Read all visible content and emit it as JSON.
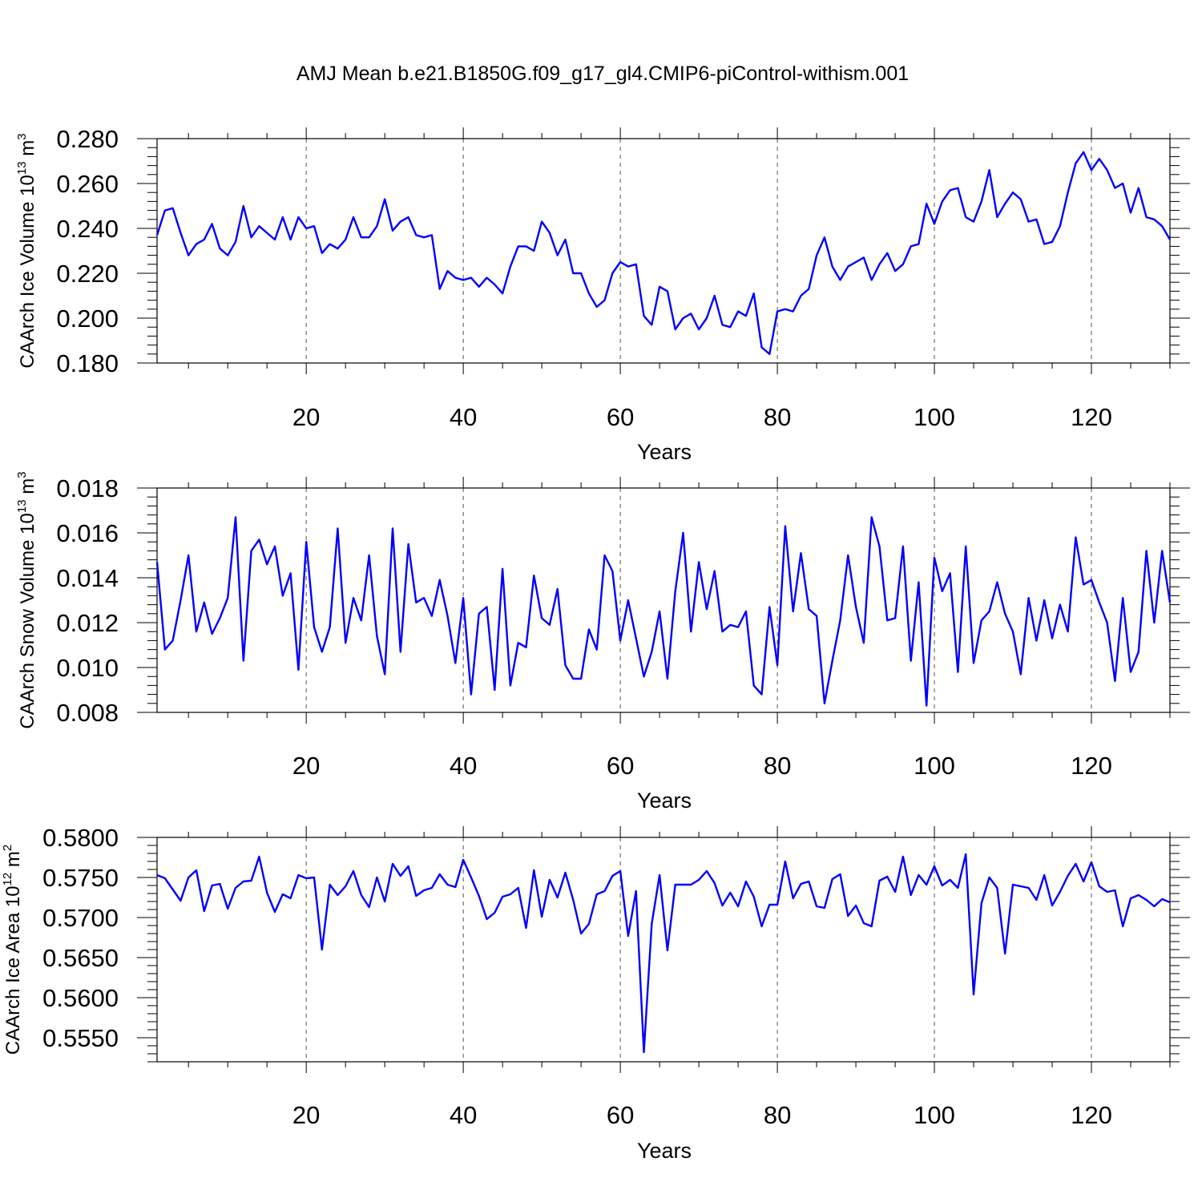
{
  "title": "AMJ Mean b.e21.B1850G.f09_g17_gl4.CMIP6-piControl-withism.001",
  "colors": {
    "line": "#0000ff",
    "axis": "#000000",
    "grid": "#555555"
  },
  "chart_data": [
    {
      "type": "line",
      "ylabel_main": "CAArch Ice Volume 10",
      "ylabel_exp": "13",
      "ylabel_unit": "m",
      "ylabel_unit_exp": "3",
      "xlabel": "Years",
      "xlim": [
        1,
        130
      ],
      "ylim": [
        0.18,
        0.28
      ],
      "xticks": [
        20,
        40,
        60,
        80,
        100,
        120
      ],
      "xtick_labels": [
        "20",
        "40",
        "60",
        "80",
        "100",
        "120"
      ],
      "yticks": [
        0.18,
        0.2,
        0.22,
        0.24,
        0.26,
        0.28
      ],
      "ytick_labels": [
        "0.180",
        "0.200",
        "0.220",
        "0.240",
        "0.260",
        "0.280"
      ],
      "series": [
        {
          "values": [
            0.237,
            0.248,
            0.249,
            0.238,
            0.228,
            0.233,
            0.235,
            0.242,
            0.231,
            0.228,
            0.234,
            0.25,
            0.236,
            0.241,
            0.238,
            0.235,
            0.245,
            0.235,
            0.245,
            0.24,
            0.241,
            0.229,
            0.233,
            0.231,
            0.235,
            0.245,
            0.236,
            0.236,
            0.241,
            0.253,
            0.239,
            0.243,
            0.245,
            0.237,
            0.236,
            0.237,
            0.213,
            0.221,
            0.218,
            0.217,
            0.218,
            0.214,
            0.218,
            0.215,
            0.211,
            0.223,
            0.232,
            0.232,
            0.23,
            0.243,
            0.238,
            0.228,
            0.235,
            0.22,
            0.22,
            0.211,
            0.205,
            0.208,
            0.22,
            0.225,
            0.223,
            0.224,
            0.201,
            0.197,
            0.214,
            0.212,
            0.195,
            0.2,
            0.202,
            0.195,
            0.2,
            0.21,
            0.197,
            0.196,
            0.203,
            0.201,
            0.211,
            0.187,
            0.184,
            0.203,
            0.204,
            0.203,
            0.21,
            0.213,
            0.228,
            0.236,
            0.223,
            0.217,
            0.223,
            0.225,
            0.227,
            0.217,
            0.224,
            0.229,
            0.221,
            0.224,
            0.232,
            0.233,
            0.251,
            0.242,
            0.252,
            0.257,
            0.258,
            0.245,
            0.243,
            0.252,
            0.266,
            0.245,
            0.251,
            0.256,
            0.253,
            0.243,
            0.244,
            0.233,
            0.234,
            0.241,
            0.256,
            0.269,
            0.274,
            0.266,
            0.271,
            0.266,
            0.258,
            0.26,
            0.247,
            0.258,
            0.245,
            0.244,
            0.241,
            0.235
          ]
        }
      ]
    },
    {
      "type": "line",
      "ylabel_main": "CAArch Snow Volume 10",
      "ylabel_exp": "13",
      "ylabel_unit": "m",
      "ylabel_unit_exp": "3",
      "xlabel": "Years",
      "xlim": [
        1,
        130
      ],
      "ylim": [
        0.008,
        0.018
      ],
      "xticks": [
        20,
        40,
        60,
        80,
        100,
        120
      ],
      "xtick_labels": [
        "20",
        "40",
        "60",
        "80",
        "100",
        "120"
      ],
      "yticks": [
        0.008,
        0.01,
        0.012,
        0.014,
        0.016,
        0.018
      ],
      "ytick_labels": [
        "0.008",
        "0.010",
        "0.012",
        "0.014",
        "0.016",
        "0.018"
      ],
      "series": [
        {
          "values": [
            0.0147,
            0.0108,
            0.0112,
            0.013,
            0.015,
            0.0116,
            0.0129,
            0.0115,
            0.0122,
            0.0131,
            0.0167,
            0.0103,
            0.0152,
            0.0157,
            0.0146,
            0.0154,
            0.0132,
            0.0142,
            0.0099,
            0.0156,
            0.0118,
            0.0107,
            0.0118,
            0.0162,
            0.0111,
            0.0131,
            0.0121,
            0.015,
            0.0114,
            0.0097,
            0.0162,
            0.0107,
            0.0155,
            0.0129,
            0.0131,
            0.0123,
            0.0139,
            0.0123,
            0.0102,
            0.0131,
            0.0088,
            0.0124,
            0.0127,
            0.009,
            0.0144,
            0.0092,
            0.0111,
            0.0109,
            0.0141,
            0.0122,
            0.0119,
            0.0135,
            0.0101,
            0.0095,
            0.0095,
            0.0117,
            0.0108,
            0.015,
            0.0143,
            0.0112,
            0.013,
            0.0113,
            0.0096,
            0.0107,
            0.0125,
            0.0095,
            0.0134,
            0.016,
            0.0116,
            0.0147,
            0.0126,
            0.0143,
            0.0116,
            0.0119,
            0.0118,
            0.0125,
            0.0092,
            0.0088,
            0.0127,
            0.0101,
            0.0163,
            0.0125,
            0.0151,
            0.0126,
            0.0123,
            0.0084,
            0.0103,
            0.0121,
            0.015,
            0.0127,
            0.0111,
            0.0167,
            0.0154,
            0.0121,
            0.0122,
            0.0154,
            0.0103,
            0.0138,
            0.0083,
            0.0149,
            0.0134,
            0.0142,
            0.0098,
            0.0154,
            0.0102,
            0.0121,
            0.0125,
            0.0138,
            0.0124,
            0.0116,
            0.0097,
            0.0131,
            0.0112,
            0.013,
            0.0113,
            0.0128,
            0.0116,
            0.0158,
            0.0137,
            0.0139,
            0.0129,
            0.012,
            0.0094,
            0.0131,
            0.0098,
            0.0107,
            0.0152,
            0.012,
            0.0152,
            0.0129
          ]
        }
      ]
    },
    {
      "type": "line",
      "ylabel_main": "CAArch Ice Area 10",
      "ylabel_exp": "12",
      "ylabel_unit": "m",
      "ylabel_unit_exp": "2",
      "xlabel": "Years",
      "xlim": [
        1,
        130
      ],
      "ylim": [
        0.552,
        0.58
      ],
      "xticks": [
        20,
        40,
        60,
        80,
        100,
        120
      ],
      "xtick_labels": [
        "20",
        "40",
        "60",
        "80",
        "100",
        "120"
      ],
      "yticks": [
        0.555,
        0.56,
        0.565,
        0.57,
        0.575,
        0.58
      ],
      "ytick_labels": [
        "0.5550",
        "0.5600",
        "0.5650",
        "0.5700",
        "0.5750",
        "0.5800"
      ],
      "series": [
        {
          "values": [
            0.5753,
            0.5749,
            0.5735,
            0.5721,
            0.575,
            0.5759,
            0.5708,
            0.574,
            0.5742,
            0.5711,
            0.5737,
            0.5745,
            0.5746,
            0.5776,
            0.5731,
            0.5707,
            0.5729,
            0.5724,
            0.5753,
            0.5749,
            0.575,
            0.566,
            0.5741,
            0.5728,
            0.5739,
            0.5758,
            0.5728,
            0.5713,
            0.575,
            0.572,
            0.5767,
            0.5752,
            0.5764,
            0.5727,
            0.5734,
            0.5737,
            0.5754,
            0.5741,
            0.5738,
            0.5772,
            0.575,
            0.5727,
            0.5698,
            0.5706,
            0.5726,
            0.5729,
            0.5737,
            0.5687,
            0.5759,
            0.5701,
            0.5747,
            0.5725,
            0.5756,
            0.5722,
            0.568,
            0.5692,
            0.5729,
            0.5733,
            0.5752,
            0.5758,
            0.5677,
            0.5733,
            0.5532,
            0.5692,
            0.5753,
            0.5659,
            0.5741,
            0.5741,
            0.5741,
            0.5747,
            0.5758,
            0.5743,
            0.5715,
            0.5731,
            0.5714,
            0.5745,
            0.5726,
            0.5689,
            0.5716,
            0.5716,
            0.577,
            0.5724,
            0.5742,
            0.5745,
            0.5714,
            0.5712,
            0.5748,
            0.5754,
            0.5702,
            0.5715,
            0.5693,
            0.5689,
            0.5746,
            0.5751,
            0.5732,
            0.5776,
            0.5728,
            0.5753,
            0.5741,
            0.5764,
            0.574,
            0.5747,
            0.5737,
            0.5779,
            0.5604,
            0.5718,
            0.575,
            0.5737,
            0.5655,
            0.5741,
            0.5739,
            0.5737,
            0.5722,
            0.5753,
            0.5715,
            0.5732,
            0.5752,
            0.5767,
            0.5745,
            0.5769,
            0.5739,
            0.5732,
            0.5734,
            0.5689,
            0.5724,
            0.5728,
            0.5722,
            0.5714,
            0.5723,
            0.5719
          ]
        }
      ]
    }
  ]
}
